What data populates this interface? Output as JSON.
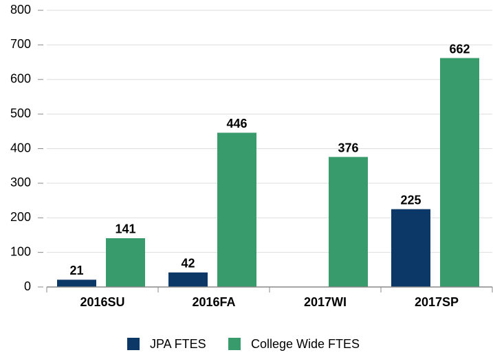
{
  "chart_data": {
    "type": "bar",
    "categories": [
      "2016SU",
      "2016FA",
      "2017WI",
      "2017SP"
    ],
    "series": [
      {
        "name": "JPA FTES",
        "color": "#0b3866",
        "values": [
          21,
          42,
          null,
          225
        ]
      },
      {
        "name": "College Wide FTES",
        "color": "#389b6b",
        "values": [
          141,
          446,
          376,
          662
        ]
      }
    ],
    "ylim": [
      0,
      800
    ],
    "yticks": [
      0,
      100,
      200,
      300,
      400,
      500,
      600,
      700,
      800
    ],
    "grid": true,
    "legend": "bottom"
  }
}
